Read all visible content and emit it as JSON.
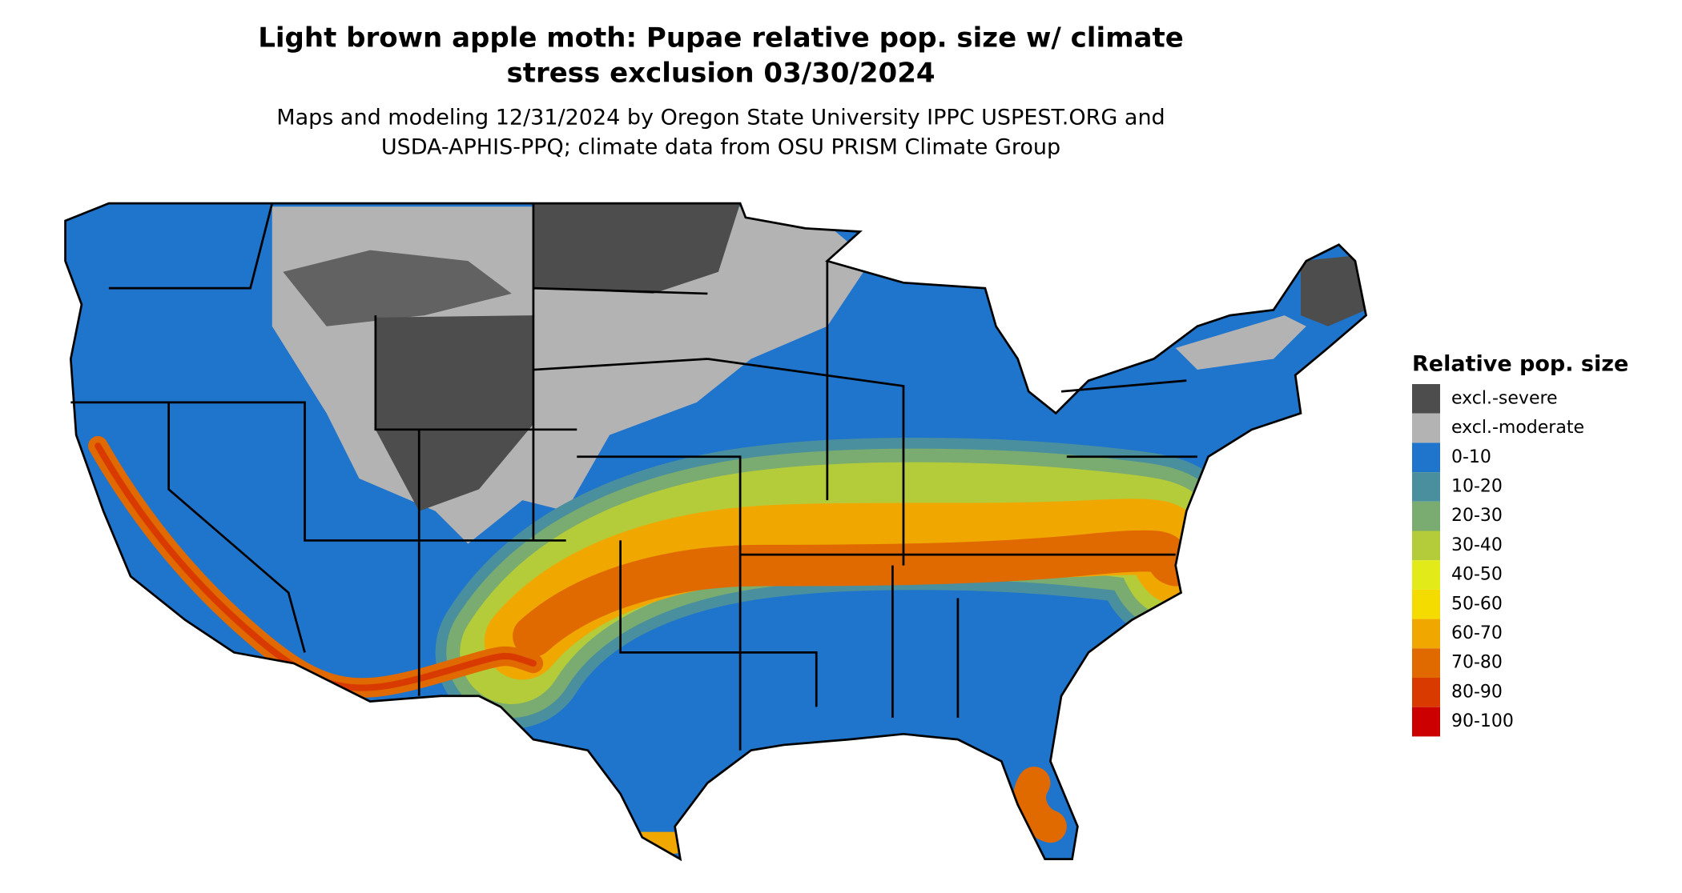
{
  "header": {
    "title": [
      "Light brown apple moth: Pupae relative pop. size w/ climate",
      "stress exclusion 03/30/2024"
    ],
    "subtitle": [
      "Maps and modeling 12/31/2024 by Oregon State University IPPC USPEST.ORG and",
      "USDA-APHIS-PPQ; climate data from OSU PRISM Climate Group"
    ]
  },
  "legend": {
    "title": "Relative pop. size",
    "items": [
      {
        "label": "excl.-severe",
        "color": "#4d4d4d"
      },
      {
        "label": "excl.-moderate",
        "color": "#b3b3b3"
      },
      {
        "label": "0-10",
        "color": "#1f74cc"
      },
      {
        "label": "10-20",
        "color": "#4a8f9e"
      },
      {
        "label": "20-30",
        "color": "#7aab70"
      },
      {
        "label": "30-40",
        "color": "#b4cc3a"
      },
      {
        "label": "40-50",
        "color": "#e2ea1a"
      },
      {
        "label": "50-60",
        "color": "#f5dc00"
      },
      {
        "label": "60-70",
        "color": "#f0a800"
      },
      {
        "label": "70-80",
        "color": "#e06a00"
      },
      {
        "label": "80-90",
        "color": "#d83a00"
      },
      {
        "label": "90-100",
        "color": "#cc0000"
      }
    ]
  }
}
